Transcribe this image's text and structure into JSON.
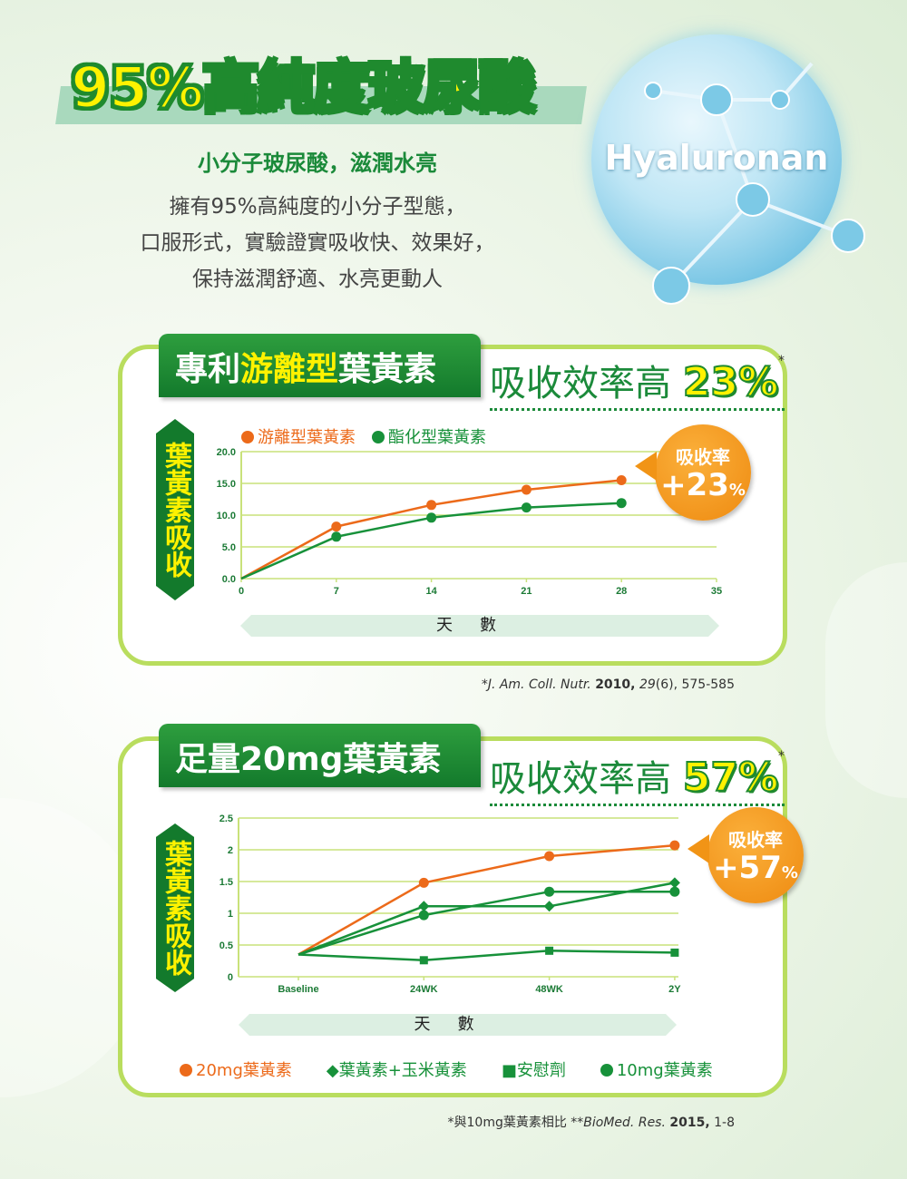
{
  "header": {
    "title": "95%高純度玻尿酸",
    "subtitle": "小分子玻尿酸，滋潤水亮",
    "description": [
      "擁有95%高純度的小分子型態，",
      "口服形式，實驗證實吸收快、效果好，",
      "保持滋潤舒適、水亮更動人"
    ],
    "sphere_label": "Hyaluronan"
  },
  "section1": {
    "tab_prefix": "專利",
    "tab_highlight": "游離型",
    "tab_suffix": "葉黃素",
    "headline": "吸收效率高",
    "headline_pct": "23%",
    "asterisk": "*",
    "ylabel": "葉黃素吸收",
    "xlabel": "天數",
    "badge_line1": "吸收率",
    "badge_value": "+23",
    "badge_unit": "%",
    "footnote": {
      "prefix": "*",
      "journal": "J. Am. Coll. Nutr.",
      "year": "2010,",
      "rest_italic": "29",
      "rest": "(6), 575-585"
    }
  },
  "section2": {
    "tab_title": "足量20mg葉黃素",
    "headline": "吸收效率高",
    "headline_pct": "57%",
    "asterisk": "*",
    "ylabel": "葉黃素吸收",
    "xlabel": "天數",
    "badge_line1": "吸收率",
    "badge_value": "+57",
    "badge_unit": "%",
    "footnote": {
      "prefix": "*與10mg葉黃素相比 **",
      "journal": "BioMed. Res.",
      "year": "2015,",
      "rest": "1-8"
    }
  },
  "colors": {
    "orange": "#ec6a1a",
    "green": "#17913a",
    "lime": "#b9dd5e",
    "dark_green": "#137a2c",
    "yellow": "#fff200"
  },
  "chart_data": [
    {
      "type": "line",
      "x": [
        0,
        7,
        14,
        21,
        28
      ],
      "xticks": [
        0,
        7,
        14,
        21,
        28,
        35
      ],
      "xlim": [
        0,
        35
      ],
      "yticks": [
        "0.0",
        "5.0",
        "10.0",
        "15.0",
        "20.0"
      ],
      "ylim": [
        0,
        20
      ],
      "xlabel": "天數",
      "ylabel": "葉黃素吸收",
      "grid": true,
      "legend": "top-left",
      "series": [
        {
          "name": "游離型葉黃素",
          "color": "#ec6a1a",
          "marker": "circle",
          "values": [
            0,
            8.2,
            11.6,
            14.0,
            15.5
          ]
        },
        {
          "name": "酯化型葉黃素",
          "color": "#17913a",
          "marker": "circle",
          "values": [
            0,
            6.6,
            9.6,
            11.2,
            11.9
          ]
        }
      ]
    },
    {
      "type": "line",
      "categories": [
        "Baseline",
        "24WK",
        "48WK",
        "2Y"
      ],
      "yticks": [
        "0",
        "0.5",
        "1",
        "1.5",
        "2",
        "2.5"
      ],
      "ylim": [
        0,
        2.5
      ],
      "xlabel": "天數",
      "ylabel": "葉黃素吸收",
      "grid": true,
      "legend": "bottom",
      "series": [
        {
          "name": "20mg葉黃素",
          "color": "#ec6a1a",
          "marker": "circle",
          "values": [
            0.35,
            1.48,
            1.9,
            2.07
          ]
        },
        {
          "name": "葉黃素+玉米黃素",
          "color": "#17913a",
          "marker": "diamond",
          "values": [
            0.35,
            1.11,
            1.11,
            1.48
          ]
        },
        {
          "name": "安慰劑",
          "color": "#17913a",
          "marker": "square",
          "values": [
            0.35,
            0.26,
            0.41,
            0.38
          ]
        },
        {
          "name": "10mg葉黃素",
          "color": "#17913a",
          "marker": "circle",
          "values": [
            0.35,
            0.97,
            1.34,
            1.34
          ]
        }
      ]
    }
  ]
}
